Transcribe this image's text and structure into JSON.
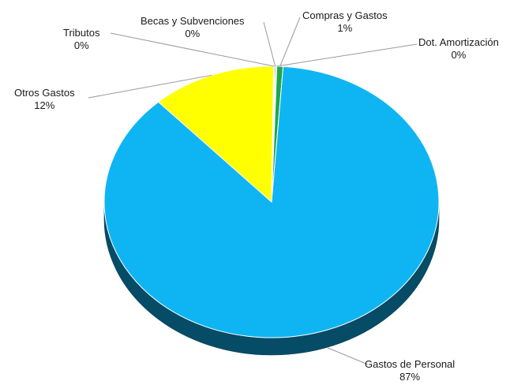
{
  "chart_data": {
    "type": "pie",
    "style": "3d",
    "title": "",
    "legend": "none",
    "slices": [
      {
        "label": "Gastos de Personal",
        "value": 87,
        "pct_label": "87%",
        "color": "#0fb5f2"
      },
      {
        "label": "Otros Gastos",
        "value": 12,
        "pct_label": "12%",
        "color": "#ffff00"
      },
      {
        "label": "Tributos",
        "value": 0.1,
        "pct_label": "0%",
        "color": "#9e9e9e"
      },
      {
        "label": "Becas y Subvenciones",
        "value": 0.1,
        "pct_label": "0%",
        "color": "#5a7fd0"
      },
      {
        "label": "Compras y Gastos",
        "value": 0.6,
        "pct_label": "1%",
        "color": "#1fa84a"
      },
      {
        "label": "Dot. Amortización",
        "value": 0.1,
        "pct_label": "0%",
        "color": "#c0504d"
      }
    ]
  }
}
